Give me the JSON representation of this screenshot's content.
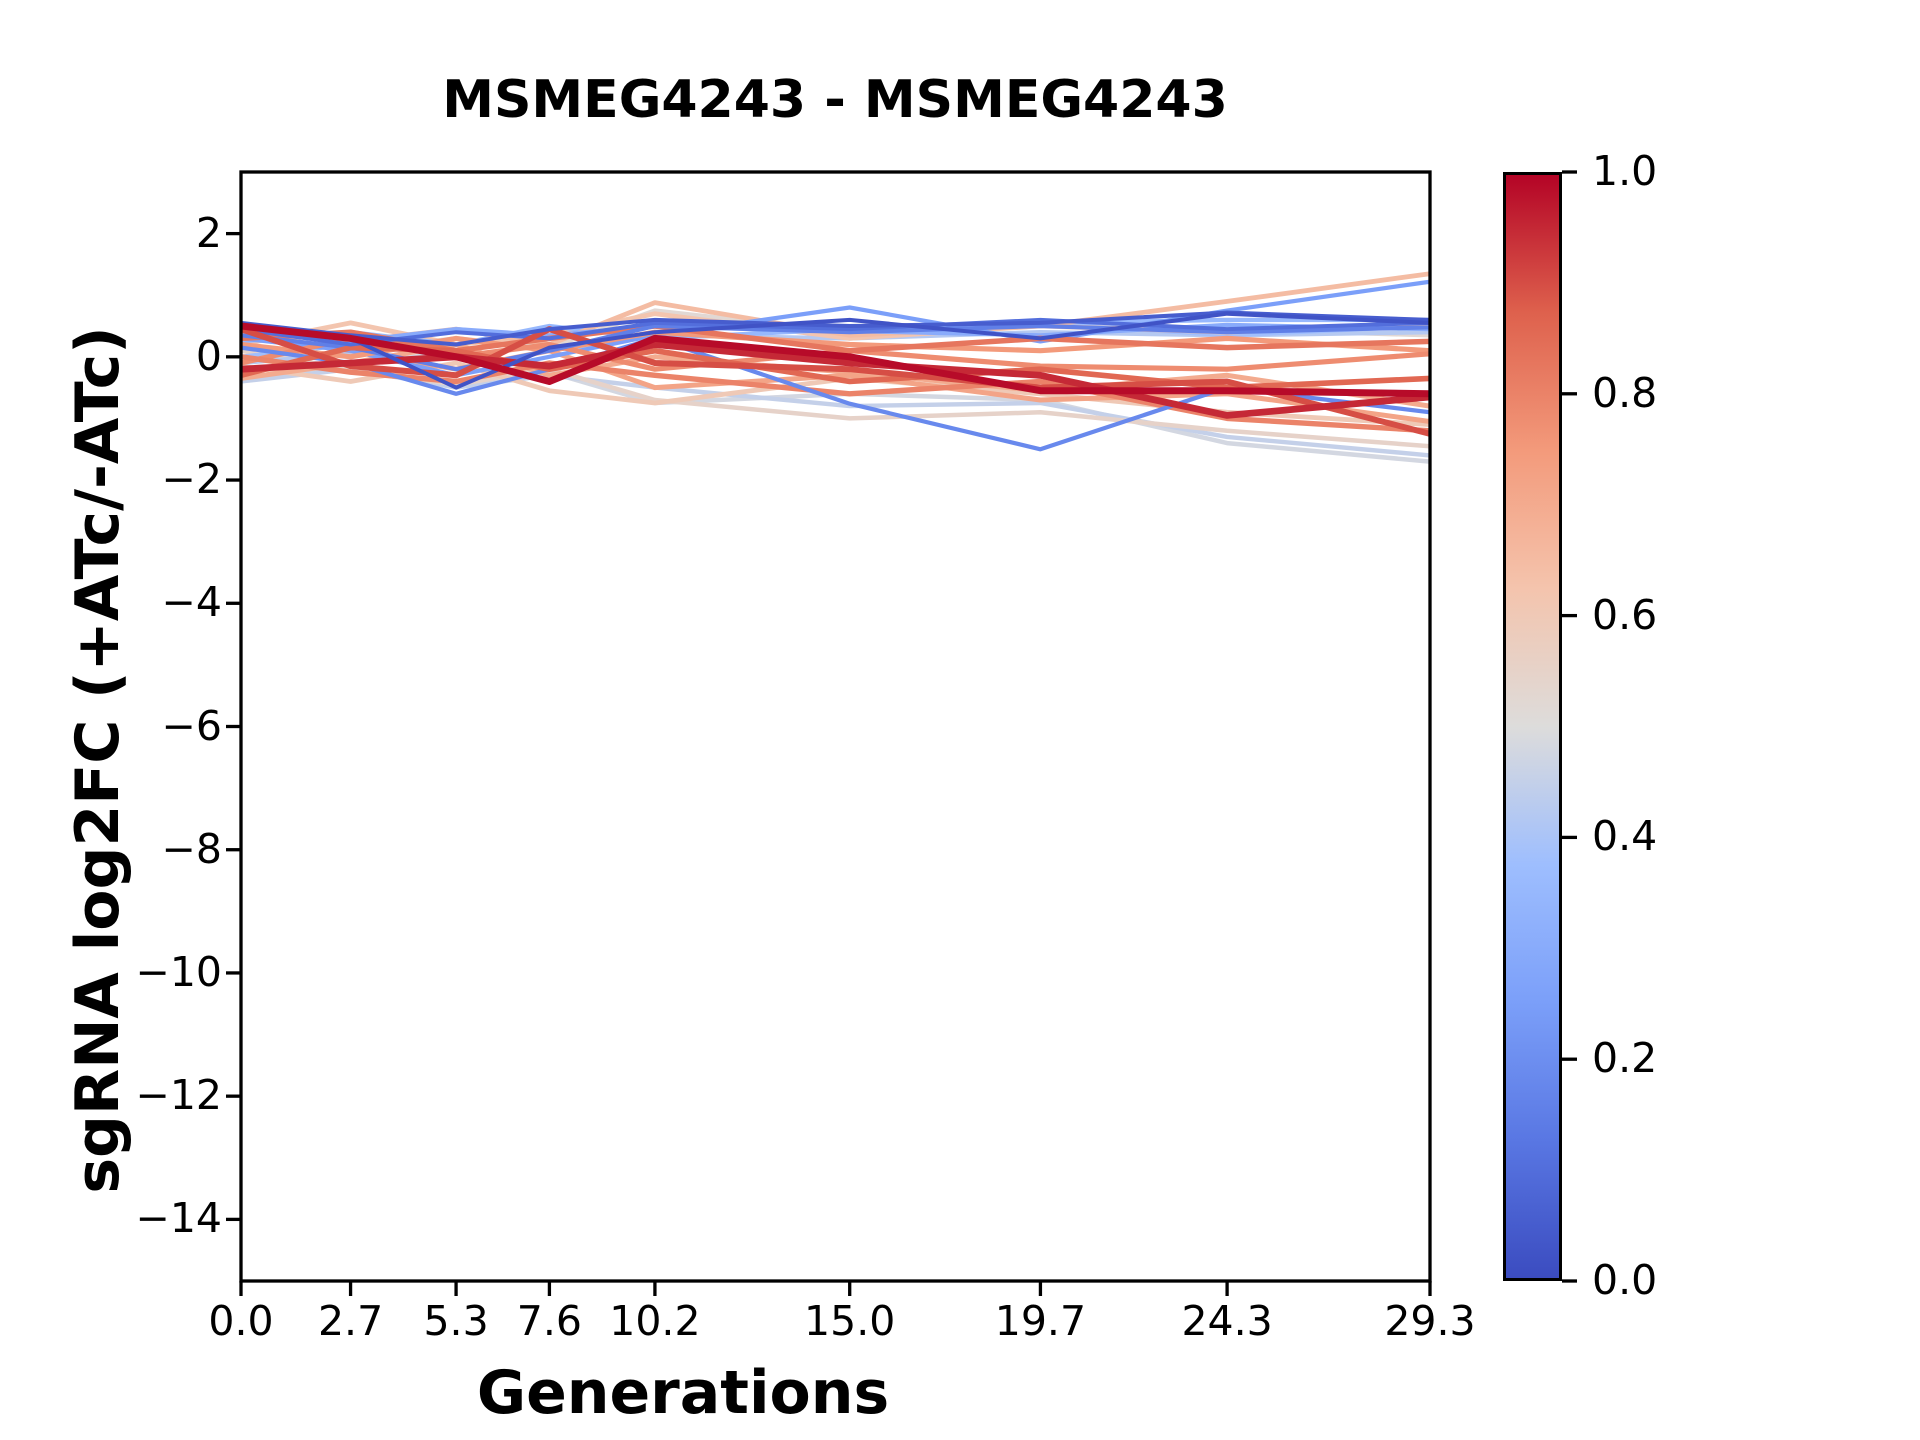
{
  "title": "MSMEG4243 - MSMEG4243",
  "colors": {
    "background": "#ffffff",
    "axis": "#000000",
    "text": "#000000"
  },
  "chart_data": {
    "type": "line",
    "title": "MSMEG4243 - MSMEG4243",
    "xlabel": "Generations",
    "ylabel": "sgRNA log2FC (+ATc/-ATc)",
    "xlim": [
      0,
      29.3
    ],
    "ylim": [
      -15,
      3
    ],
    "grid": false,
    "x": [
      0.0,
      2.7,
      5.3,
      7.6,
      10.2,
      15.0,
      19.7,
      24.3,
      29.3
    ],
    "x_tick_labels": [
      "0.0",
      "2.7",
      "5.3",
      "7.6",
      "10.2",
      "15.0",
      "19.7",
      "24.3",
      "29.3"
    ],
    "y_ticks": [
      2,
      0,
      -2,
      -4,
      -6,
      -8,
      -10,
      -12,
      -14
    ],
    "y_tick_labels": [
      "2",
      "0",
      "−2",
      "−4",
      "−6",
      "−8",
      "−10",
      "−12",
      "−14"
    ],
    "colormap": {
      "name": "coolwarm",
      "anchors": [
        [
          0.0,
          "#3b4cc0"
        ],
        [
          0.125,
          "#5977e3"
        ],
        [
          0.25,
          "#7b9ff9"
        ],
        [
          0.375,
          "#9ebefe"
        ],
        [
          0.5,
          "#dddcdb"
        ],
        [
          0.625,
          "#f4c4ad"
        ],
        [
          0.75,
          "#f39a7b"
        ],
        [
          0.875,
          "#de614d"
        ],
        [
          1.0,
          "#b40426"
        ]
      ]
    },
    "colorbar": {
      "vmin": 0.0,
      "vmax": 1.0,
      "ticks": [
        0.0,
        0.2,
        0.4,
        0.6,
        0.8,
        1.0
      ],
      "tick_labels": [
        "0.0",
        "0.2",
        "0.4",
        "0.6",
        "0.8",
        "1.0"
      ]
    },
    "series": [
      {
        "c": 0.02,
        "lw": 4.0,
        "y": [
          0.5,
          0.3,
          -0.5,
          0.15,
          0.4,
          0.6,
          0.3,
          0.7,
          0.55
        ]
      },
      {
        "c": 0.05,
        "lw": 4.0,
        "y": [
          0.55,
          0.35,
          0.2,
          0.45,
          0.6,
          0.5,
          0.55,
          0.72,
          0.6
        ]
      },
      {
        "c": 0.1,
        "lw": 4.0,
        "y": [
          0.45,
          0.2,
          0.4,
          0.3,
          0.55,
          0.45,
          0.6,
          0.45,
          0.55
        ]
      },
      {
        "c": 0.15,
        "lw": 4.2,
        "y": [
          0.35,
          0.15,
          -0.2,
          0.1,
          0.5,
          0.4,
          0.5,
          0.4,
          0.48
        ]
      },
      {
        "c": 0.18,
        "lw": 4.2,
        "y": [
          0.15,
          -0.1,
          -0.6,
          -0.2,
          0.3,
          -0.76,
          -1.5,
          -0.5,
          -0.9
        ]
      },
      {
        "c": 0.25,
        "lw": 4.2,
        "y": [
          0.3,
          0.1,
          -0.3,
          0.0,
          0.35,
          0.8,
          0.25,
          0.75,
          1.22
        ]
      },
      {
        "c": 0.3,
        "lw": 4.2,
        "y": [
          0.4,
          0.25,
          0.45,
          0.35,
          0.5,
          0.42,
          0.35,
          0.52,
          0.45
        ]
      },
      {
        "c": 0.35,
        "lw": 4.4,
        "y": [
          0.25,
          0.4,
          0.2,
          0.5,
          0.3,
          0.45,
          0.55,
          0.6,
          0.6
        ]
      },
      {
        "c": 0.38,
        "lw": 4.4,
        "y": [
          0.0,
          0.2,
          0.45,
          0.3,
          0.5,
          0.4,
          0.55,
          0.35,
          0.5
        ]
      },
      {
        "c": 0.42,
        "lw": 4.4,
        "y": [
          -0.1,
          0.05,
          0.3,
          0.1,
          0.35,
          0.3,
          0.4,
          0.35,
          0.4
        ]
      },
      {
        "c": 0.45,
        "lw": 4.4,
        "y": [
          -0.4,
          -0.2,
          -0.5,
          -0.3,
          -0.5,
          -0.8,
          -0.75,
          -1.3,
          -1.6
        ]
      },
      {
        "c": 0.48,
        "lw": 4.5,
        "y": [
          -0.35,
          -0.15,
          0.1,
          -0.25,
          -0.75,
          -0.6,
          -0.7,
          -1.4,
          -1.7
        ]
      },
      {
        "c": 0.52,
        "lw": 4.5,
        "y": [
          0.35,
          0.1,
          0.3,
          0.15,
          0.75,
          0.4,
          0.5,
          0.45,
          0.35
        ]
      },
      {
        "c": 0.55,
        "lw": 4.5,
        "y": [
          0.1,
          -0.2,
          -0.45,
          -0.2,
          -0.7,
          -1.0,
          -0.9,
          -1.2,
          -1.45
        ]
      },
      {
        "c": 0.6,
        "lw": 4.8,
        "y": [
          -0.15,
          -0.4,
          -0.1,
          -0.55,
          -0.75,
          -0.35,
          -0.6,
          -0.9,
          -1.1
        ]
      },
      {
        "c": 0.62,
        "lw": 4.8,
        "y": [
          0.2,
          0.55,
          0.2,
          0.35,
          0.7,
          0.3,
          0.5,
          0.4,
          0.55
        ]
      },
      {
        "c": 0.65,
        "lw": 4.8,
        "y": [
          0.5,
          0.25,
          0.45,
          0.2,
          0.88,
          0.35,
          0.5,
          0.9,
          1.35
        ]
      },
      {
        "c": 0.7,
        "lw": 5.0,
        "y": [
          -0.35,
          -0.1,
          0.2,
          -0.3,
          0.0,
          -0.25,
          -0.55,
          -0.3,
          -0.8
        ]
      },
      {
        "c": 0.72,
        "lw": 5.0,
        "y": [
          0.4,
          0.1,
          -0.2,
          0.1,
          -0.5,
          -0.3,
          -0.7,
          -0.6,
          -1.05
        ]
      },
      {
        "c": 0.75,
        "lw": 5.2,
        "y": [
          0.2,
          0.0,
          0.3,
          0.1,
          0.4,
          0.2,
          0.1,
          0.3,
          0.1
        ]
      },
      {
        "c": 0.78,
        "lw": 5.2,
        "y": [
          -0.1,
          0.3,
          0.0,
          0.2,
          -0.2,
          0.1,
          -0.15,
          -0.2,
          0.05
        ]
      },
      {
        "c": 0.8,
        "lw": 5.4,
        "y": [
          0.0,
          -0.25,
          -0.4,
          -0.1,
          -0.3,
          -0.6,
          -0.4,
          -1.0,
          -1.2
        ]
      },
      {
        "c": 0.83,
        "lw": 5.5,
        "y": [
          0.3,
          0.4,
          0.1,
          0.3,
          0.5,
          0.1,
          0.3,
          0.15,
          0.25
        ]
      },
      {
        "c": 0.86,
        "lw": 5.6,
        "y": [
          -0.3,
          0.15,
          0.1,
          -0.2,
          0.1,
          -0.4,
          -0.2,
          -0.5,
          -0.35
        ]
      },
      {
        "c": 0.9,
        "lw": 6.0,
        "y": [
          0.45,
          -0.15,
          -0.3,
          0.45,
          -0.1,
          -0.2,
          -0.5,
          -0.4,
          -1.25
        ]
      },
      {
        "c": 0.95,
        "lw": 6.8,
        "y": [
          -0.2,
          -0.1,
          0.0,
          -0.15,
          0.2,
          -0.1,
          -0.3,
          -0.95,
          -0.65
        ]
      },
      {
        "c": 0.99,
        "lw": 7.0,
        "y": [
          0.5,
          0.3,
          0.0,
          -0.4,
          0.3,
          0.0,
          -0.55,
          -0.55,
          -0.6
        ]
      }
    ]
  }
}
